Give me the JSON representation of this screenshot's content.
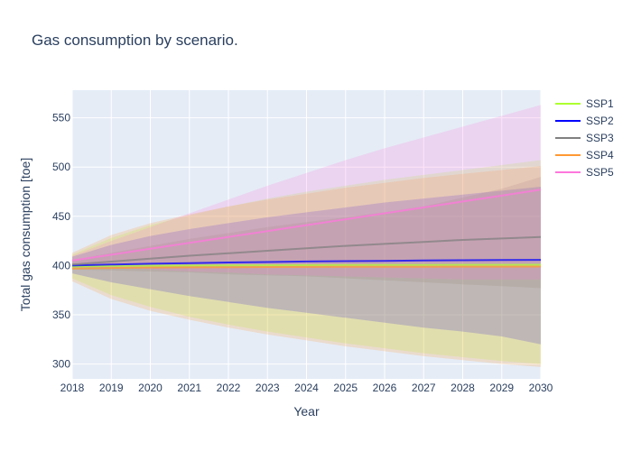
{
  "chart_data": {
    "type": "line",
    "title": "Gas consumption by scenario.",
    "xlabel": "Year",
    "ylabel": "Total gas consumption [toe]",
    "x": [
      2018,
      2019,
      2020,
      2021,
      2022,
      2023,
      2024,
      2025,
      2026,
      2027,
      2028,
      2029,
      2030
    ],
    "xlim": [
      2018,
      2030
    ],
    "ylim": [
      285,
      578
    ],
    "yticks": [
      300,
      350,
      400,
      450,
      500,
      550
    ],
    "grid": true,
    "legend_position": "top-right, outside plot",
    "plot_background": "#e5ecf6",
    "series": [
      {
        "name": "SSP1",
        "color": "#adff2f",
        "values": [
          399,
          399.5,
          399.8,
          400,
          400.2,
          400.3,
          400.4,
          400.5,
          400.6,
          400.6,
          400.7,
          400.7,
          400.8
        ],
        "band_upper": [
          411,
          428,
          441,
          451,
          460,
          468,
          475,
          481,
          487,
          492,
          497,
          502,
          507
        ],
        "band_lower": [
          387,
          370,
          358,
          348,
          340,
          333,
          327,
          321,
          316,
          311,
          307,
          303,
          300
        ]
      },
      {
        "name": "SSP2",
        "color": "#0000ff",
        "values": [
          400,
          401,
          401.8,
          402.5,
          403.1,
          403.6,
          404.1,
          404.5,
          404.8,
          405.1,
          405.4,
          405.6,
          405.8
        ],
        "band_upper": [
          409,
          421,
          430,
          437,
          443,
          449,
          454,
          459,
          464,
          468,
          472,
          476,
          480
        ],
        "band_lower": [
          392,
          383,
          376,
          369,
          363,
          357,
          352,
          347,
          342,
          337,
          333,
          328,
          320
        ]
      },
      {
        "name": "SSP3",
        "color": "#808080",
        "values": [
          401,
          404,
          407,
          410,
          412.5,
          415,
          417.5,
          420,
          422,
          424,
          426,
          427.5,
          429
        ],
        "band_upper": [
          405,
          413,
          420,
          427,
          433,
          439,
          444,
          449,
          454,
          460,
          469,
          478,
          490
        ],
        "band_lower": [
          396,
          395,
          394,
          393,
          391,
          390,
          389,
          387,
          385,
          383,
          381,
          379,
          377
        ]
      },
      {
        "name": "SSP4",
        "color": "#ff9933",
        "values": [
          397,
          397.5,
          398,
          398.2,
          398.4,
          398.5,
          398.6,
          398.7,
          398.8,
          398.8,
          398.9,
          398.9,
          399
        ],
        "band_upper": [
          413,
          431,
          443,
          452,
          460,
          467,
          473,
          479,
          484,
          489,
          493,
          497,
          501
        ],
        "band_lower": [
          384,
          366,
          354,
          345,
          337,
          330,
          324,
          318,
          313,
          308,
          304,
          300,
          297
        ]
      },
      {
        "name": "SSP5",
        "color": "#ff77dd",
        "values": [
          405,
          411,
          417,
          423,
          429,
          435,
          441,
          447,
          453,
          459,
          465,
          471,
          477
        ],
        "band_upper": [
          410,
          425,
          439,
          453,
          467,
          481,
          494,
          507,
          519,
          530,
          541,
          552,
          563
        ],
        "band_lower": [
          400,
          398,
          396,
          394,
          393,
          391,
          390,
          389,
          388,
          387,
          386,
          386,
          386
        ]
      }
    ]
  }
}
